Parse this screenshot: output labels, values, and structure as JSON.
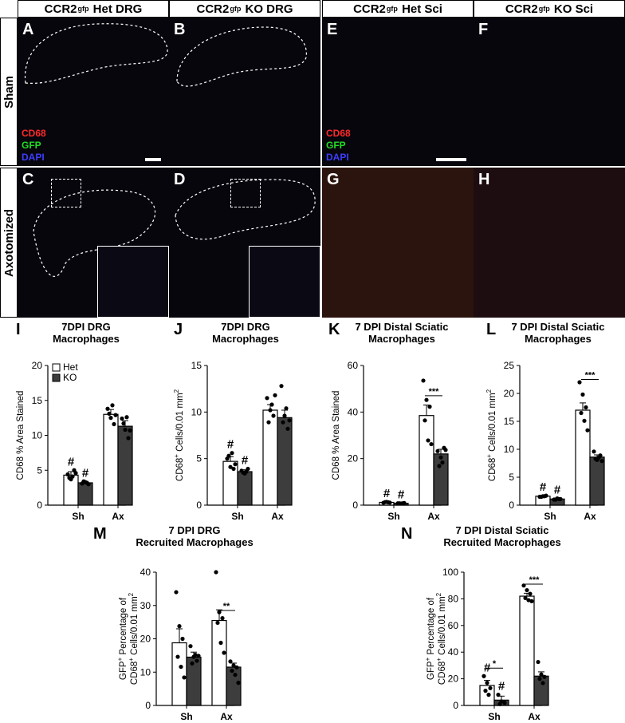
{
  "headers": [
    {
      "pre": "CCR2",
      "sup": "gfp",
      "post": " Het DRG"
    },
    {
      "pre": "CCR2",
      "sup": "gfp",
      "post": " KO DRG"
    },
    {
      "pre": "CCR2",
      "sup": "gfp",
      "post": " Het Sci"
    },
    {
      "pre": "CCR2",
      "sup": "gfp",
      "post": " KO Sci"
    }
  ],
  "row_labels": [
    "Sham",
    "Axotomized"
  ],
  "image_panels": [
    {
      "letter": "A"
    },
    {
      "letter": "B"
    },
    {
      "letter": "E"
    },
    {
      "letter": "F"
    },
    {
      "letter": "C"
    },
    {
      "letter": "D"
    },
    {
      "letter": "G"
    },
    {
      "letter": "H"
    }
  ],
  "stain_legend": [
    {
      "label": "CD68",
      "color": "#ff2a2a"
    },
    {
      "label": "GFP",
      "color": "#22dd22"
    },
    {
      "label": "DAPI",
      "color": "#3d3dff"
    }
  ],
  "colors": {
    "het": "#ffffff",
    "ko": "#3d3d3d",
    "stroke": "#000000"
  },
  "charts": [
    {
      "letter": "I",
      "title": [
        "7DPI DRG",
        "Macrophages"
      ],
      "ylabel": [
        "CD68 % Area Stained"
      ],
      "ylim": [
        0,
        20
      ],
      "ticks": [
        "0",
        "5",
        "10",
        "15",
        "20"
      ],
      "categories": [
        "Sh",
        "Ax"
      ],
      "series": [
        {
          "name": "Het",
          "means": [
            4.3,
            13.0
          ],
          "sems": [
            0.5,
            0.7
          ]
        },
        {
          "name": "KO",
          "means": [
            3.2,
            11.3
          ],
          "sems": [
            0.2,
            0.8
          ]
        }
      ],
      "points": [
        [
          [
            4.4,
            3.7,
            5.0,
            3.9,
            4.1,
            4.6
          ],
          [
            3.1,
            3.3,
            3.0,
            3.4,
            3.2
          ]
        ],
        [
          [
            13.8,
            12.5,
            11.6,
            13.1,
            14.3,
            12.9
          ],
          [
            12.4,
            10.8,
            9.6,
            11.7,
            12.6,
            10.7
          ]
        ]
      ],
      "marks": [
        {
          "type": "hash",
          "text": "#",
          "group": 0,
          "series": 0
        },
        {
          "type": "hash",
          "text": "#",
          "group": 0,
          "series": 1
        }
      ],
      "legend": [
        "Het",
        "KO"
      ]
    },
    {
      "letter": "J",
      "title": [
        "7DPI DRG",
        "Macrophages"
      ],
      "ylabel": [
        "CD68",
        "+",
        " Cells/0.01 mm",
        "2"
      ],
      "ylim": [
        0,
        15
      ],
      "ticks": [
        "0",
        "5",
        "10",
        "15"
      ],
      "categories": [
        "Sh",
        "Ax"
      ],
      "series": [
        {
          "name": "Het",
          "means": [
            4.7,
            10.2
          ],
          "sems": [
            0.5,
            0.6
          ]
        },
        {
          "name": "KO",
          "means": [
            3.6,
            9.4
          ],
          "sems": [
            0.2,
            0.8
          ]
        }
      ],
      "points": [
        [
          [
            5.0,
            4.1,
            3.9,
            5.3,
            5.6,
            4.4
          ],
          [
            3.7,
            3.4,
            3.9,
            3.5,
            3.6
          ]
        ],
        [
          [
            11.5,
            10.2,
            9.6,
            8.9,
            10.8,
            11.8
          ],
          [
            12.8,
            9.6,
            8.2,
            8.9,
            10.4,
            9.1
          ]
        ]
      ],
      "marks": [
        {
          "type": "hash",
          "text": "#",
          "group": 0,
          "series": 0
        },
        {
          "type": "hash",
          "text": "#",
          "group": 0,
          "series": 1
        }
      ]
    },
    {
      "letter": "K",
      "title": [
        "7 DPI Distal Sciatic",
        "Macrophages"
      ],
      "ylabel": [
        "CD68 % Area Stained"
      ],
      "ylim": [
        0,
        60
      ],
      "ticks": [
        "0",
        "20",
        "40",
        "60"
      ],
      "categories": [
        "Sh",
        "Ax"
      ],
      "series": [
        {
          "name": "Het",
          "means": [
            1.2,
            38.5
          ],
          "sems": [
            0.2,
            4.5
          ]
        },
        {
          "name": "KO",
          "means": [
            0.8,
            22.0
          ],
          "sems": [
            0.1,
            2.0
          ]
        }
      ],
      "points": [
        [
          [
            1.0,
            1.4,
            1.1,
            1.3,
            1.2
          ],
          [
            0.8,
            0.7,
            0.9,
            0.8,
            0.8
          ]
        ],
        [
          [
            53.5,
            45.2,
            42.3,
            36.4,
            27.8,
            26.2
          ],
          [
            23.2,
            20.5,
            24.6,
            16.8,
            18.3,
            23.7
          ]
        ]
      ],
      "marks": [
        {
          "type": "hash",
          "text": "#",
          "group": 0,
          "series": 0
        },
        {
          "type": "hash",
          "text": "#",
          "group": 0,
          "series": 1
        },
        {
          "type": "sig",
          "text": "***",
          "group": 1,
          "y": 47
        }
      ]
    },
    {
      "letter": "L",
      "title": [
        "7 DPI Distal Sciatic",
        "Macrophages"
      ],
      "ylabel": [
        "CD68",
        "+",
        " Cells/0.01 mm",
        "2"
      ],
      "ylim": [
        0,
        25
      ],
      "ticks": [
        "0",
        "5",
        "10",
        "15",
        "20",
        "25"
      ],
      "categories": [
        "Sh",
        "Ax"
      ],
      "series": [
        {
          "name": "Het",
          "means": [
            1.6,
            17.0
          ],
          "sems": [
            0.1,
            1.3
          ]
        },
        {
          "name": "KO",
          "means": [
            1.1,
            8.6
          ],
          "sems": [
            0.1,
            0.4
          ]
        }
      ],
      "points": [
        [
          [
            1.5,
            1.6,
            1.7,
            1.5,
            1.6
          ],
          [
            1.0,
            1.2,
            1.1,
            1.0,
            1.1
          ]
        ],
        [
          [
            22.0,
            19.8,
            17.5,
            16.5,
            15.1,
            13.4
          ],
          [
            9.6,
            8.1,
            8.9,
            8.3,
            8.5,
            7.9
          ]
        ]
      ],
      "marks": [
        {
          "type": "hash",
          "text": "#",
          "group": 0,
          "series": 0
        },
        {
          "type": "hash",
          "text": "#",
          "group": 0,
          "series": 1
        },
        {
          "type": "sig",
          "text": "***",
          "group": 1,
          "y": 22.5
        }
      ]
    },
    {
      "letter": "M",
      "title": [
        "7 DPI DRG",
        "Recruited Macrophages"
      ],
      "ylabel": [
        "GFP",
        "+",
        " Percentage of",
        "CD68",
        "+",
        " Cells/0.01 mm",
        "2"
      ],
      "ylim": [
        0,
        40
      ],
      "ticks": [
        "0",
        "10",
        "20",
        "30",
        "40"
      ],
      "categories": [
        "Sh",
        "Ax"
      ],
      "series": [
        {
          "name": "Het",
          "means": [
            18.8,
            25.5
          ],
          "sems": [
            4.2,
            3.2
          ]
        },
        {
          "name": "KO",
          "means": [
            14.5,
            11.5
          ],
          "sems": [
            1.5,
            1.2
          ]
        }
      ],
      "points": [
        [
          [
            34.0,
            23.8,
            20.0,
            14.6,
            11.6,
            8.4
          ],
          [
            17.8,
            14.6,
            13.4,
            12.6,
            15.2,
            14.9
          ]
        ],
        [
          [
            40.0,
            28.0,
            26.2,
            24.8,
            18.8,
            15.8
          ],
          [
            13.2,
            12.0,
            11.4,
            10.4,
            9.2,
            6.8
          ]
        ]
      ],
      "marks": [
        {
          "type": "sig",
          "text": "**",
          "group": 1,
          "y": 28.5
        }
      ]
    },
    {
      "letter": "N",
      "title": [
        "7 DPI Distal Sciatic",
        "Recruited Macrophages"
      ],
      "ylabel": [
        "GFP",
        "+",
        " Percentage of",
        "CD68",
        "+",
        " Cells/0.01 mm",
        "2"
      ],
      "ylim": [
        0,
        100
      ],
      "ticks": [
        "0",
        "20",
        "40",
        "60",
        "80",
        "100"
      ],
      "categories": [
        "Sh",
        "Ax"
      ],
      "series": [
        {
          "name": "Het",
          "means": [
            15.0,
            82.0
          ],
          "sems": [
            3.8,
            2.2
          ]
        },
        {
          "name": "KO",
          "means": [
            4.0,
            22.0
          ],
          "sems": [
            3.0,
            3.2
          ]
        }
      ],
      "points": [
        [
          [
            22.0,
            17.0,
            13.0,
            11.0,
            8.0
          ],
          [
            8.0,
            3.0,
            2.0,
            1.0
          ]
        ],
        [
          [
            90.0,
            86.5,
            83.8,
            80.6,
            79.0,
            78.2
          ],
          [
            32.6,
            23.2,
            21.4,
            20.0,
            16.8
          ]
        ]
      ],
      "marks": [
        {
          "type": "hash",
          "text": "#",
          "group": 0,
          "series": 0
        },
        {
          "type": "hash",
          "text": "#",
          "group": 0,
          "series": 1
        },
        {
          "type": "sig",
          "text": "*",
          "group": 0,
          "y": 28
        },
        {
          "type": "sig",
          "text": "***",
          "group": 1,
          "y": 91
        }
      ]
    }
  ]
}
